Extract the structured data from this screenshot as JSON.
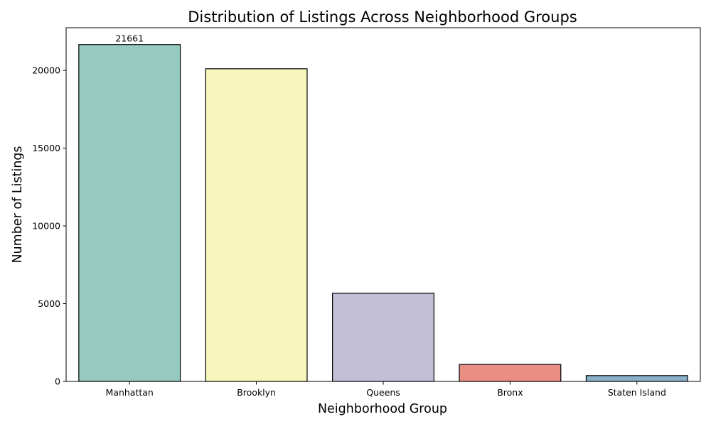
{
  "chart_data": {
    "type": "bar",
    "title": "Distribution of Listings Across Neighborhood Groups",
    "xlabel": "Neighborhood Group",
    "ylabel": "Number of Listings",
    "categories": [
      "Manhattan",
      "Brooklyn",
      "Queens",
      "Bronx",
      "Staten Island"
    ],
    "values": [
      21661,
      20104,
      5666,
      1091,
      373
    ],
    "data_labels": [
      {
        "category": "Manhattan",
        "text": "21661",
        "value": 21661
      }
    ],
    "colors": [
      "#96cac1",
      "#f6f6bc",
      "#c1bed6",
      "#ea8e83",
      "#8aafc9"
    ],
    "bar_edge_color": "#000000",
    "ylim": [
      0,
      22745
    ],
    "yticks": [
      0,
      5000,
      10000,
      15000,
      20000
    ],
    "grid": false,
    "legend": "none"
  }
}
